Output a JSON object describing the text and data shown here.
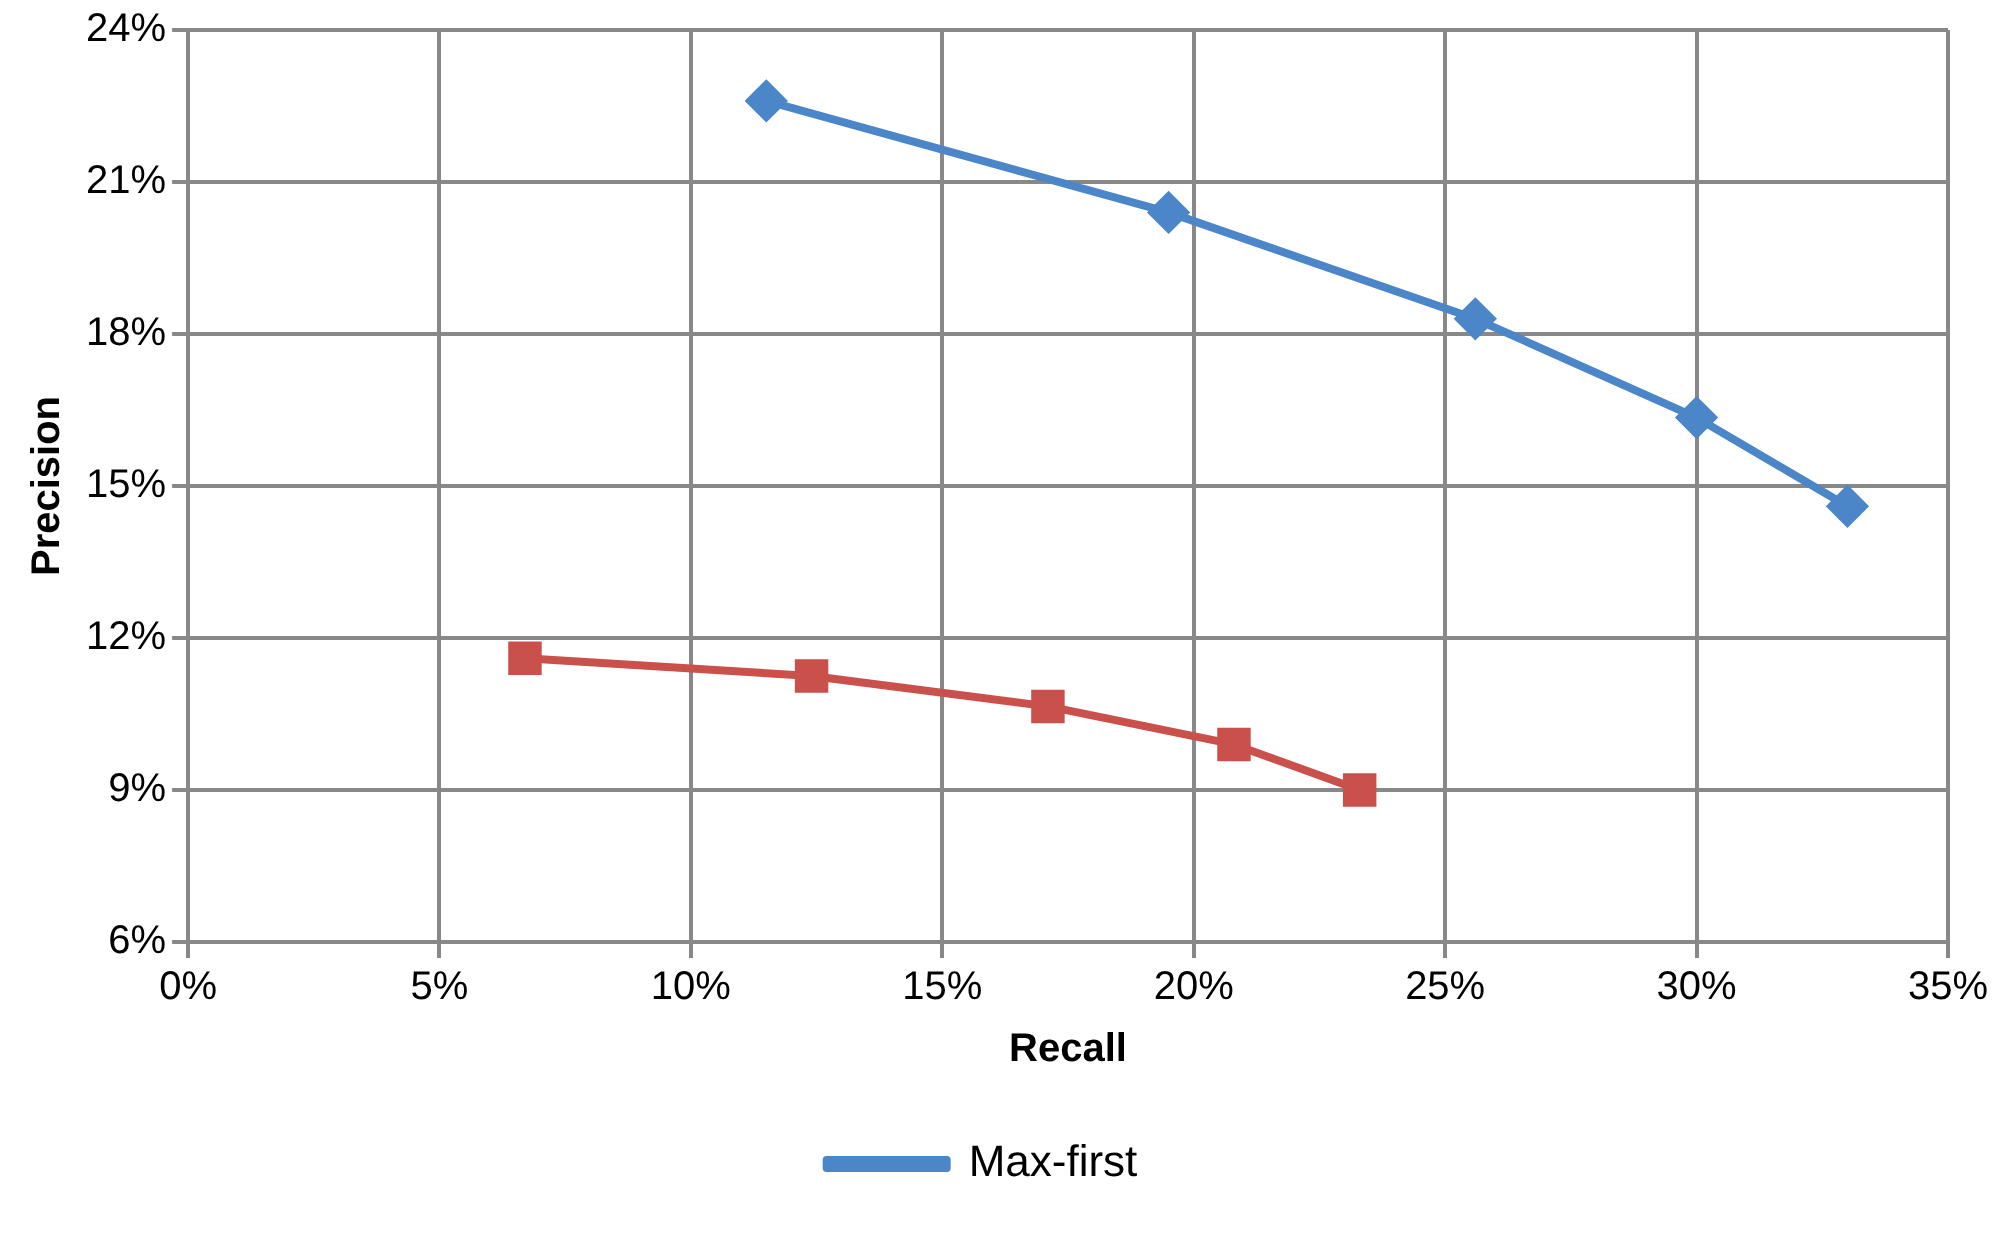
{
  "chart_data": {
    "type": "line",
    "xlabel": "Recall",
    "ylabel": "Precision",
    "xlim": [
      0,
      35
    ],
    "xticks": [
      {
        "value": 0,
        "label": "0%"
      },
      {
        "value": 5,
        "label": "5%"
      },
      {
        "value": 10,
        "label": "10%"
      },
      {
        "value": 15,
        "label": "15%"
      },
      {
        "value": 20,
        "label": "20%"
      },
      {
        "value": 25,
        "label": "25%"
      },
      {
        "value": 30,
        "label": "30%"
      },
      {
        "value": 35,
        "label": "35%"
      }
    ],
    "ylim": [
      6,
      24
    ],
    "yticks": [
      {
        "value": 6,
        "label": "6%"
      },
      {
        "value": 9,
        "label": "9%"
      },
      {
        "value": 12,
        "label": "12%"
      },
      {
        "value": 15,
        "label": "15%"
      },
      {
        "value": 18,
        "label": "18%"
      },
      {
        "value": 21,
        "label": "21%"
      },
      {
        "value": 24,
        "label": "24%"
      }
    ],
    "grid": true,
    "legend": "bottom",
    "line_style": "solid",
    "series": [
      {
        "name": "Max-first",
        "color": "#4a86c8",
        "marker": "diamond",
        "x": [
          11.5,
          19.5,
          25.6,
          30.0,
          33.0
        ],
        "values": [
          22.6,
          20.4,
          18.3,
          16.35,
          14.6
        ]
      },
      {
        "color": "#c9504b",
        "marker": "square",
        "x": [
          6.7,
          12.4,
          17.1,
          20.8,
          23.3
        ],
        "values": [
          11.6,
          11.25,
          10.65,
          9.9,
          9.0
        ]
      }
    ]
  }
}
